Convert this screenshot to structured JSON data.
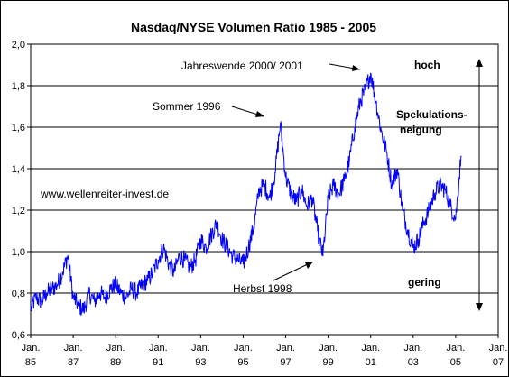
{
  "chart_data": {
    "type": "line",
    "title": "Nasdaq/NYSE Volumen Ratio 1985 - 2005",
    "xlabel": "",
    "ylabel": "",
    "xlim": [
      1985.0,
      2007.0
    ],
    "ylim": [
      0.6,
      2.0
    ],
    "grid": true,
    "y_ticks": [
      "0,6",
      "0,8",
      "1,0",
      "1,2",
      "1,4",
      "1,6",
      "1,8",
      "2,0"
    ],
    "x_ticks": [
      {
        "line1": "Jan.",
        "line2": "85",
        "year": 1985
      },
      {
        "line1": "Jan.",
        "line2": "87",
        "year": 1987
      },
      {
        "line1": "Jan.",
        "line2": "89",
        "year": 1989
      },
      {
        "line1": "Jan.",
        "line2": "91",
        "year": 1991
      },
      {
        "line1": "Jan.",
        "line2": "93",
        "year": 1993
      },
      {
        "line1": "Jan.",
        "line2": "95",
        "year": 1995
      },
      {
        "line1": "Jan.",
        "line2": "97",
        "year": 1997
      },
      {
        "line1": "Jan.",
        "line2": "99",
        "year": 1999
      },
      {
        "line1": "Jan.",
        "line2": "01",
        "year": 2001
      },
      {
        "line1": "Jan.",
        "line2": "03",
        "year": 2003
      },
      {
        "line1": "Jan.",
        "line2": "05",
        "year": 2005
      },
      {
        "line1": "Jan.",
        "line2": "07",
        "year": 2007
      }
    ],
    "series": [
      {
        "color": "#0000ff",
        "x": [
          1985.0,
          1985.25,
          1985.5,
          1985.75,
          1986.0,
          1986.25,
          1986.5,
          1986.75,
          1987.0,
          1987.25,
          1987.5,
          1987.75,
          1988.0,
          1988.25,
          1988.5,
          1988.75,
          1989.0,
          1989.25,
          1989.5,
          1989.75,
          1990.0,
          1990.25,
          1990.5,
          1990.75,
          1991.0,
          1991.25,
          1991.5,
          1991.75,
          1992.0,
          1992.25,
          1992.5,
          1992.75,
          1993.0,
          1993.25,
          1993.5,
          1993.75,
          1994.0,
          1994.25,
          1994.5,
          1994.75,
          1995.0,
          1995.25,
          1995.5,
          1995.75,
          1996.0,
          1996.25,
          1996.5,
          1996.75,
          1997.0,
          1997.25,
          1997.5,
          1997.75,
          1998.0,
          1998.25,
          1998.5,
          1998.75,
          1999.0,
          1999.25,
          1999.5,
          1999.75,
          2000.0,
          2000.25,
          2000.5,
          2000.75,
          2001.0,
          2001.25,
          2001.5,
          2001.75,
          2002.0,
          2002.25,
          2002.5,
          2002.75,
          2003.0,
          2003.25,
          2003.5,
          2003.75,
          2004.0,
          2004.25,
          2004.5,
          2004.75,
          2005.0,
          2005.25
        ],
        "y": [
          0.72,
          0.78,
          0.76,
          0.8,
          0.82,
          0.84,
          0.9,
          0.98,
          0.78,
          0.74,
          0.72,
          0.8,
          0.76,
          0.8,
          0.78,
          0.82,
          0.84,
          0.8,
          0.78,
          0.82,
          0.8,
          0.84,
          0.86,
          0.9,
          0.96,
          1.02,
          0.94,
          0.9,
          0.98,
          0.96,
          0.92,
          0.96,
          1.06,
          1.02,
          1.08,
          1.14,
          1.06,
          1.02,
          0.98,
          0.96,
          0.94,
          1.02,
          1.12,
          1.3,
          1.32,
          1.26,
          1.38,
          1.62,
          1.36,
          1.28,
          1.24,
          1.3,
          1.22,
          1.26,
          1.1,
          0.98,
          1.26,
          1.32,
          1.28,
          1.34,
          1.44,
          1.6,
          1.72,
          1.78,
          1.86,
          1.72,
          1.58,
          1.48,
          1.32,
          1.4,
          1.2,
          1.1,
          1.02,
          1.06,
          1.14,
          1.2,
          1.28,
          1.32,
          1.3,
          1.22,
          1.16,
          1.46
        ]
      }
    ],
    "annotations": [
      {
        "text": "Jahreswende 2000/ 2001"
      },
      {
        "text": "Sommer 1996"
      },
      {
        "text": "Herbst 1998"
      },
      {
        "text": "www.wellenreiter-invest.de"
      },
      {
        "text": "hoch"
      },
      {
        "text": "Spekulations-"
      },
      {
        "text": "neigung"
      },
      {
        "text": "gering"
      }
    ]
  }
}
